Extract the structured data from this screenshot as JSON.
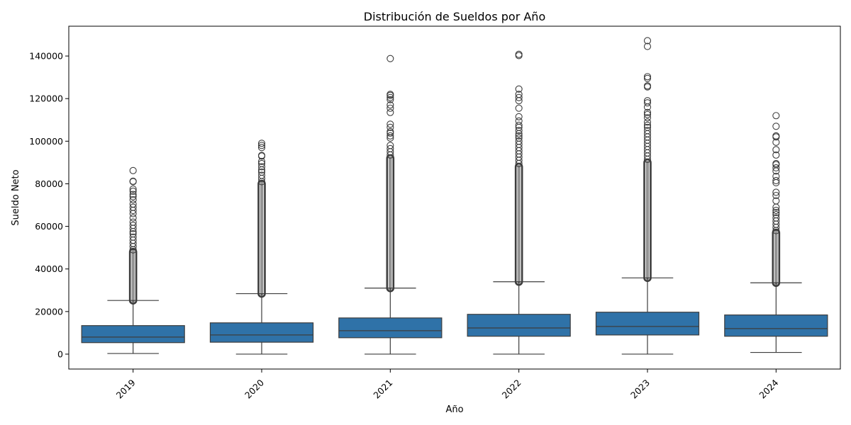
{
  "chart_data": {
    "type": "box",
    "title": "Distribución de Sueldos por Año",
    "xlabel": "Año",
    "ylabel": "Sueldo Neto",
    "categories": [
      "2019",
      "2020",
      "2021",
      "2022",
      "2023",
      "2024"
    ],
    "ylim": [
      -7000,
      154000
    ],
    "yticks": [
      0,
      20000,
      40000,
      60000,
      80000,
      100000,
      120000,
      140000
    ],
    "ytick_labels": [
      "0",
      "20000",
      "40000",
      "60000",
      "80000",
      "100000",
      "120000",
      "140000"
    ],
    "xtick_rotation": 45,
    "grid": false,
    "box_color": "#2f72a8",
    "line_color": "#3d3d3d",
    "boxes": [
      {
        "category": "2019",
        "whisker_low": 300,
        "q1": 5400,
        "median": 8000,
        "q3": 13400,
        "whisker_high": 25200,
        "dense_outliers": [
          25200,
          48000
        ],
        "outliers": [
          49000,
          50500,
          52000,
          53500,
          55000,
          56500,
          57500,
          59000,
          60500,
          62000,
          64000,
          66000,
          67500,
          69000,
          70500,
          72500,
          74000,
          75000,
          76500,
          77500,
          81000,
          81200,
          86200
        ]
      },
      {
        "category": "2020",
        "whisker_low": 0,
        "q1": 5600,
        "median": 9000,
        "q3": 14700,
        "whisker_high": 28400,
        "dense_outliers": [
          28400,
          80000
        ],
        "outliers": [
          81000,
          82500,
          84000,
          85500,
          86500,
          88000,
          89500,
          90500,
          93000,
          93300,
          97000,
          98000,
          99000
        ]
      },
      {
        "category": "2021",
        "whisker_low": 0,
        "q1": 7700,
        "median": 11000,
        "q3": 17000,
        "whisker_high": 31000,
        "dense_outliers": [
          31000,
          92000
        ],
        "outliers": [
          93500,
          95000,
          96500,
          98000,
          101500,
          102500,
          103800,
          104500,
          106500,
          108000,
          113500,
          115500,
          117000,
          119500,
          120500,
          121500,
          122000,
          138800
        ]
      },
      {
        "category": "2022",
        "whisker_low": 0,
        "q1": 8400,
        "median": 12300,
        "q3": 18700,
        "whisker_high": 34000,
        "dense_outliers": [
          34000,
          88000
        ],
        "outliers": [
          89500,
          91000,
          92500,
          94000,
          95500,
          97000,
          98500,
          100000,
          101500,
          102500,
          103500,
          105000,
          106500,
          107500,
          109500,
          111500,
          115500,
          119000,
          120500,
          122000,
          124500,
          140200,
          140800
        ]
      },
      {
        "category": "2023",
        "whisker_low": 0,
        "q1": 9000,
        "median": 13000,
        "q3": 19700,
        "whisker_high": 35800,
        "dense_outliers": [
          35800,
          90000
        ],
        "outliers": [
          91500,
          93000,
          94500,
          96000,
          97500,
          99000,
          100500,
          102000,
          103500,
          105000,
          106500,
          107500,
          109000,
          111000,
          112500,
          113500,
          116000,
          118000,
          119000,
          125500,
          126000,
          129500,
          130300,
          144500,
          147200
        ]
      },
      {
        "category": "2024",
        "whisker_low": 800,
        "q1": 8400,
        "median": 12000,
        "q3": 18400,
        "whisker_high": 33500,
        "dense_outliers": [
          33500,
          57000
        ],
        "outliers": [
          58000,
          59500,
          61000,
          62500,
          64000,
          65500,
          66500,
          67500,
          69000,
          72000,
          74500,
          76000,
          80500,
          81500,
          83500,
          86000,
          87500,
          89000,
          89500,
          93500,
          96000,
          99500,
          102000,
          102500,
          107000,
          112000
        ]
      }
    ]
  }
}
